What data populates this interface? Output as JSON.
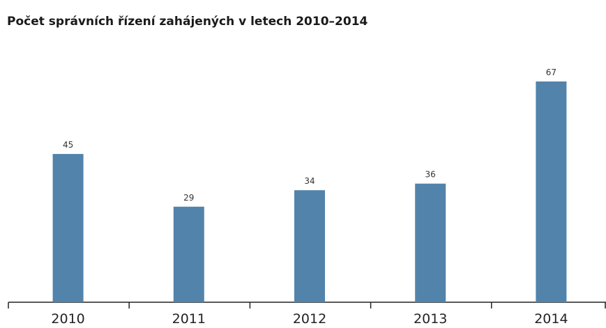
{
  "chart_data": {
    "type": "bar",
    "title": "Počet správních řízení zahájených v letech 2010–2014",
    "categories": [
      "2010",
      "2011",
      "2012",
      "2013",
      "2014"
    ],
    "values": [
      45,
      29,
      34,
      36,
      67
    ],
    "color": "#5283ab"
  }
}
